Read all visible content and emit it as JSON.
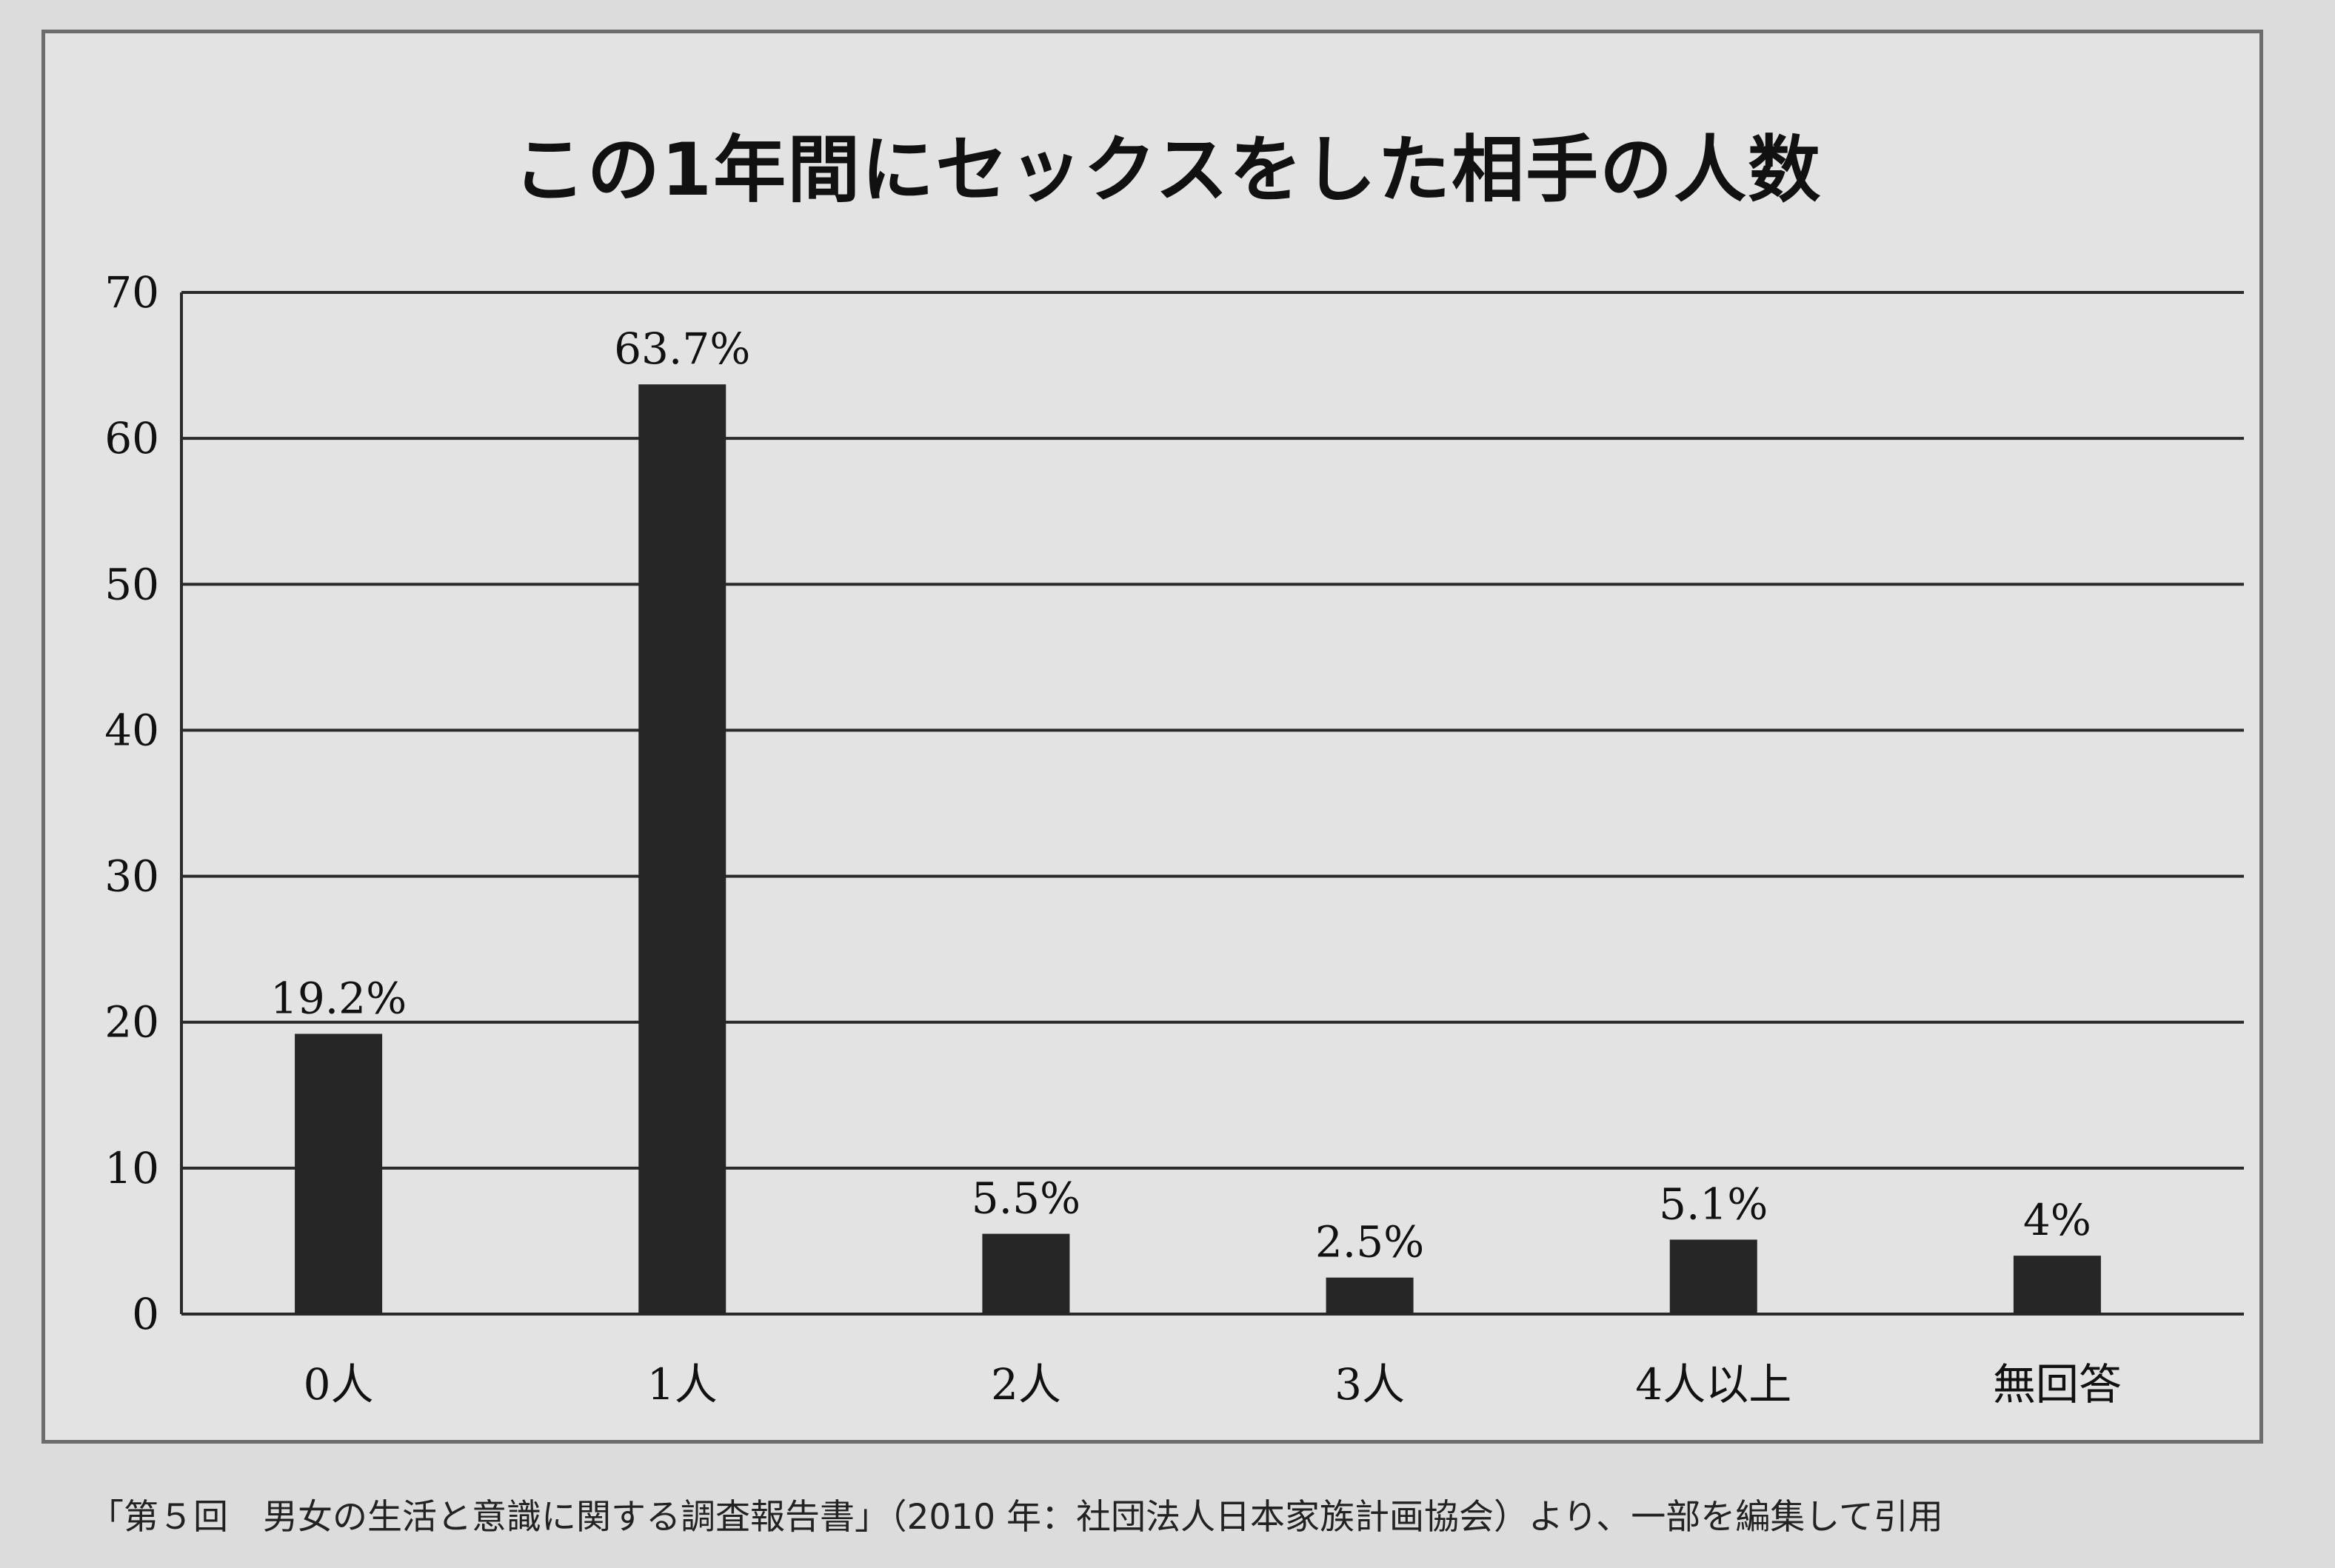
{
  "chart_data": {
    "type": "bar",
    "title": "この1年間にセックスをした相手の人数",
    "categories": [
      "0人",
      "1人",
      "2人",
      "3人",
      "4人以上",
      "無回答"
    ],
    "values": [
      19.2,
      63.7,
      5.5,
      2.5,
      5.1,
      4
    ],
    "data_labels": [
      "19.2%",
      "63.7%",
      "5.5%",
      "2.5%",
      "5.1%",
      "4%"
    ],
    "ylim": [
      0,
      70
    ],
    "yticks": [
      0,
      10,
      20,
      30,
      40,
      50,
      60,
      70
    ],
    "grid": true,
    "bar_color": "#262626"
  },
  "caption": "「第５回　男女の生活と意識に関する調査報告書」（2010 年：社団法人日本家族計画協会）より、一部を編集して引用"
}
